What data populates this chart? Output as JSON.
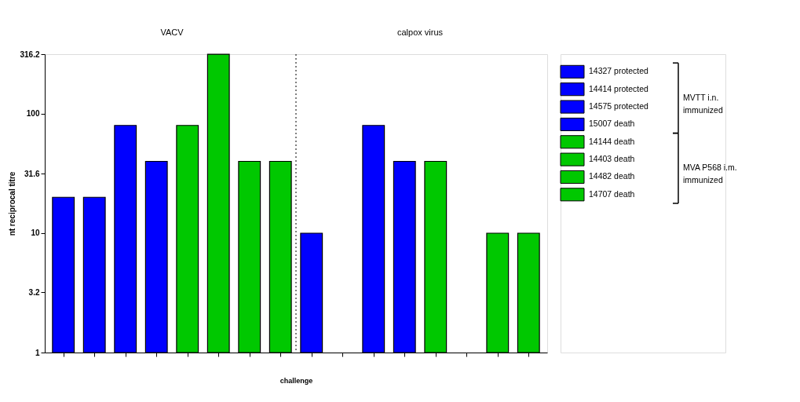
{
  "chart_data": {
    "type": "bar",
    "xlabel": "challenge",
    "ylabel": "nt reciprocal titre",
    "categories": [
      null,
      null,
      null,
      null,
      null,
      null,
      null,
      null,
      null,
      null,
      null,
      null,
      null,
      null,
      null,
      null
    ],
    "series": [
      {
        "name": "14327 protected",
        "color": "#0000ff",
        "values": [
          20,
          null,
          null,
          null,
          null,
          null,
          null,
          null,
          10,
          null,
          null,
          null,
          null,
          null,
          null,
          null
        ]
      },
      {
        "name": "14414 protected",
        "color": "#0000ff",
        "values": [
          null,
          20,
          null,
          null,
          null,
          null,
          null,
          null,
          null,
          null,
          null,
          null,
          null,
          null,
          null,
          null
        ]
      },
      {
        "name": "14575 protected",
        "color": "#0000ff",
        "values": [
          null,
          null,
          80,
          null,
          null,
          null,
          null,
          null,
          null,
          null,
          80,
          null,
          null,
          null,
          null,
          null
        ]
      },
      {
        "name": "15007 death",
        "color": "#0000ff",
        "values": [
          null,
          null,
          null,
          40,
          null,
          null,
          null,
          null,
          null,
          null,
          null,
          40,
          null,
          null,
          null,
          null
        ]
      },
      {
        "name": "14144 death",
        "color": "#00c800",
        "values": [
          null,
          null,
          null,
          null,
          80,
          null,
          null,
          null,
          null,
          null,
          null,
          null,
          40,
          null,
          null,
          null
        ]
      },
      {
        "name": "14403 death",
        "color": "#00c800",
        "values": [
          null,
          null,
          null,
          null,
          null,
          316,
          null,
          null,
          null,
          null,
          null,
          null,
          null,
          null,
          null,
          null
        ]
      },
      {
        "name": "14482 death",
        "color": "#00c800",
        "values": [
          null,
          null,
          null,
          null,
          null,
          null,
          40,
          null,
          null,
          null,
          null,
          null,
          null,
          null,
          10,
          null
        ]
      },
      {
        "name": "14707 death",
        "color": "#00c800",
        "values": [
          null,
          null,
          null,
          null,
          null,
          null,
          null,
          40,
          null,
          null,
          null,
          null,
          null,
          null,
          null,
          10
        ]
      }
    ],
    "log": true,
    "ylim": [
      1,
      316.2
    ],
    "yticks": [
      1,
      3.2,
      10,
      31.6,
      100,
      316.2
    ],
    "grid": false,
    "legend": "right",
    "annotations": [
      "VACV",
      "calpox virus",
      "MVTT i.n. immunized",
      "MVA P568 i.m. immunized"
    ]
  }
}
